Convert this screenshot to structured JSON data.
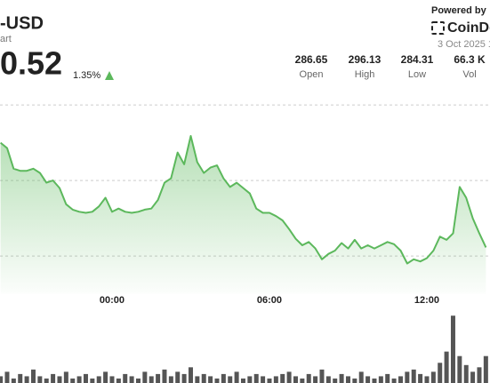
{
  "header": {
    "symbol": "-USD",
    "subtitle": "art",
    "price": "0.52",
    "change": "1.35%",
    "powered_by": "Powered by",
    "brand": "CoinDe",
    "date": "3 Oct 2025 1"
  },
  "stats": [
    {
      "value": 286.65,
      "label": "Open"
    },
    {
      "value": 296.13,
      "label": "High"
    },
    {
      "value": 284.31,
      "label": "Low"
    },
    {
      "value": "66.3 K",
      "label": "Vol"
    }
  ],
  "chart_data": {
    "type": "line",
    "categories": [
      null,
      null,
      null,
      null,
      null,
      null,
      null,
      null,
      null,
      null,
      null,
      null,
      null,
      null,
      null,
      null,
      null,
      "00:00",
      null,
      null,
      null,
      null,
      null,
      null,
      null,
      null,
      null,
      null,
      null,
      null,
      null,
      null,
      null,
      null,
      null,
      null,
      null,
      null,
      null,
      null,
      null,
      "06:00",
      null,
      null,
      null,
      null,
      null,
      null,
      null,
      null,
      null,
      null,
      null,
      null,
      null,
      null,
      null,
      null,
      null,
      null,
      null,
      null,
      null,
      null,
      null,
      "12:00",
      null,
      null,
      null,
      null,
      null,
      null,
      null,
      null,
      null
    ],
    "ylim": [
      281.5,
      300
    ],
    "yticks": [
      285,
      292,
      299
    ],
    "grid": true,
    "y2lim": [
      0,
      4
    ],
    "series": [
      {
        "color": "#5cb85c",
        "values": [
          295.5,
          295.0,
          293.1,
          292.9,
          292.9,
          293.1,
          292.7,
          291.8,
          292.0,
          291.3,
          289.8,
          289.3,
          289.1,
          289.0,
          289.1,
          289.6,
          290.4,
          289.1,
          289.4,
          289.1,
          289.0,
          289.1,
          289.3,
          289.4,
          290.2,
          291.8,
          292.2,
          294.6,
          293.5,
          296.13,
          293.7,
          292.7,
          293.2,
          293.4,
          292.2,
          291.4,
          291.8,
          291.3,
          290.8,
          289.4,
          289.0,
          289.0,
          288.7,
          288.3,
          287.5,
          286.6,
          286.0,
          286.3,
          285.7,
          284.7,
          285.2,
          285.5,
          286.2,
          285.7,
          286.5,
          285.7,
          286.0,
          285.7,
          286.0,
          286.3,
          286.1,
          285.5,
          284.31,
          284.7,
          284.5,
          284.8,
          285.5,
          286.8,
          286.5,
          287.1,
          291.4,
          290.4,
          288.5,
          287.1,
          285.8
        ]
      },
      {
        "type": "bar",
        "axis": "y2",
        "color": "#555555",
        "values": [
          0.3,
          0.5,
          0.2,
          0.4,
          0.3,
          0.6,
          0.3,
          0.2,
          0.4,
          0.3,
          0.5,
          0.2,
          0.3,
          0.4,
          0.2,
          0.3,
          0.5,
          0.3,
          0.2,
          0.4,
          0.3,
          0.2,
          0.5,
          0.3,
          0.4,
          0.6,
          0.3,
          0.5,
          0.4,
          0.7,
          0.3,
          0.4,
          0.3,
          0.2,
          0.4,
          0.3,
          0.5,
          0.2,
          0.3,
          0.4,
          0.3,
          0.2,
          0.3,
          0.4,
          0.5,
          0.3,
          0.2,
          0.4,
          0.3,
          0.6,
          0.3,
          0.2,
          0.4,
          0.3,
          0.2,
          0.5,
          0.3,
          0.2,
          0.3,
          0.4,
          0.2,
          0.3,
          0.5,
          0.6,
          0.4,
          0.3,
          0.5,
          0.9,
          1.4,
          3.0,
          1.2,
          0.8,
          0.5,
          0.7,
          1.2
        ]
      }
    ]
  }
}
